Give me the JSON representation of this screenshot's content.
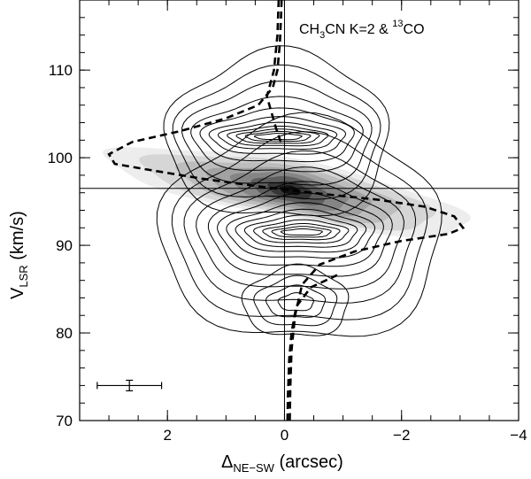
{
  "chart_data": {
    "type": "contour",
    "title": "",
    "annotation": {
      "base": "CH",
      "sub1": "3",
      "mid": "CN K=2 & ",
      "sup": "13",
      "end": "CO"
    },
    "xlabel": {
      "base": "Δ",
      "sub": "NE−SW",
      "rest": " (arcsec)"
    },
    "ylabel": {
      "base": "V",
      "sub": "LSR",
      "rest": " (km/s)"
    },
    "xlim": [
      3.5,
      -4
    ],
    "ylim": [
      70,
      118
    ],
    "x_ticks": [
      {
        "v": 2,
        "label": "2"
      },
      {
        "v": 0,
        "label": "0"
      },
      {
        "v": -2,
        "label": "−2"
      },
      {
        "v": -4,
        "label": "−4"
      }
    ],
    "y_ticks": [
      {
        "v": 70,
        "label": "70"
      },
      {
        "v": 80,
        "label": "80"
      },
      {
        "v": 90,
        "label": "90"
      },
      {
        "v": 100,
        "label": "100"
      },
      {
        "v": 110,
        "label": "110"
      }
    ],
    "x_minor_step": 0.5,
    "y_minor_step": 2,
    "reference_lines": {
      "velocity": 96.5,
      "offset": 0
    },
    "filled_contours_13CO": {
      "center": [
        -0.1,
        96.3
      ],
      "tilt_per_arcsec": 1.2,
      "levels": [
        {
          "rx": 3.1,
          "ry": 3.4,
          "fill": "#ededed"
        },
        {
          "rx": 2.5,
          "ry": 3.0,
          "fill": "#d6d6d6"
        },
        {
          "rx": 1.9,
          "ry": 2.6,
          "fill": "#bdbdbd"
        },
        {
          "rx": 1.4,
          "ry": 2.2,
          "fill": "#a2a2a2"
        },
        {
          "rx": 1.0,
          "ry": 1.8,
          "fill": "#858585"
        },
        {
          "rx": 0.65,
          "ry": 1.4,
          "fill": "#5e5e5e"
        },
        {
          "rx": 0.38,
          "ry": 0.9,
          "fill": "#363636"
        },
        {
          "rx": 0.18,
          "ry": 0.5,
          "fill": "#111111"
        }
      ]
    },
    "line_contours_CH3CN": {
      "upper_lobe": {
        "center": [
          0.1,
          102.4
        ],
        "levels": [
          {
            "rx": 1.9,
            "ry": 9.5
          },
          {
            "rx": 1.75,
            "ry": 7.5
          },
          {
            "rx": 1.6,
            "ry": 5.8
          },
          {
            "rx": 1.45,
            "ry": 4.2
          },
          {
            "rx": 1.3,
            "ry": 3.0
          },
          {
            "rx": 1.15,
            "ry": 2.1
          },
          {
            "rx": 1.0,
            "ry": 1.5
          },
          {
            "rx": 0.85,
            "ry": 1.1
          },
          {
            "rx": 0.7,
            "ry": 0.8
          },
          {
            "rx": 0.55,
            "ry": 0.55
          },
          {
            "rx": 0.4,
            "ry": 0.35
          }
        ]
      },
      "lower_lobe": {
        "center": [
          -0.3,
          91.5
        ],
        "levels": [
          {
            "rx": 2.4,
            "ry": 12.5
          },
          {
            "rx": 2.15,
            "ry": 10.5
          },
          {
            "rx": 1.95,
            "ry": 8.5
          },
          {
            "rx": 1.75,
            "ry": 6.8
          },
          {
            "rx": 1.55,
            "ry": 5.3
          },
          {
            "rx": 1.4,
            "ry": 4.1
          },
          {
            "rx": 1.25,
            "ry": 3.1
          },
          {
            "rx": 1.1,
            "ry": 2.4
          },
          {
            "rx": 0.95,
            "ry": 1.8
          },
          {
            "rx": 0.8,
            "ry": 1.3
          },
          {
            "rx": 0.65,
            "ry": 0.9
          },
          {
            "rx": 0.5,
            "ry": 0.6
          },
          {
            "rx": 0.35,
            "ry": 0.35
          }
        ]
      },
      "secondary_peak": {
        "center": [
          -0.2,
          83.5
        ],
        "levels": [
          {
            "rx": 0.9,
            "ry": 4.0
          },
          {
            "rx": 0.7,
            "ry": 2.8
          },
          {
            "rx": 0.5,
            "ry": 1.8
          },
          {
            "rx": 0.3,
            "ry": 1.0
          }
        ]
      }
    },
    "keplerian_curve": {
      "style": "dashed",
      "points": [
        [
          0.05,
          118
        ],
        [
          0.06,
          116
        ],
        [
          0.08,
          113
        ],
        [
          0.12,
          110
        ],
        [
          0.2,
          108
        ],
        [
          0.45,
          106
        ],
        [
          1.0,
          104.5
        ],
        [
          1.8,
          103
        ],
        [
          2.6,
          101.8
        ],
        [
          3.0,
          100.4
        ],
        [
          2.9,
          99.3
        ],
        [
          2.3,
          98.6
        ],
        [
          1.4,
          97.6
        ],
        [
          0.4,
          96.7
        ],
        [
          -0.6,
          95.9
        ],
        [
          -1.6,
          95.2
        ],
        [
          -2.4,
          94.4
        ],
        [
          -2.9,
          93.3
        ],
        [
          -3.05,
          92.0
        ],
        [
          -2.8,
          91.3
        ],
        [
          -2.0,
          90.5
        ],
        [
          -1.2,
          89.3
        ],
        [
          -0.6,
          87.8
        ],
        [
          -0.3,
          85.5
        ],
        [
          -0.18,
          82
        ],
        [
          -0.12,
          78
        ],
        [
          -0.1,
          74
        ],
        [
          -0.09,
          70
        ]
      ],
      "points_mirror": [
        [
          -0.05,
          70
        ],
        [
          -0.06,
          73
        ],
        [
          -0.08,
          77
        ],
        [
          -0.12,
          80
        ],
        [
          -0.2,
          83
        ],
        [
          -0.45,
          85.2
        ],
        [
          -0.9,
          86.6
        ]
      ],
      "points_inner": [
        [
          0.1,
          118
        ],
        [
          0.12,
          114
        ],
        [
          0.18,
          110
        ],
        [
          0.3,
          107
        ],
        [
          0.15,
          103.5
        ],
        [
          0.05,
          101.5
        ]
      ]
    },
    "error_bar": {
      "x": 2.65,
      "y": 74,
      "x_err": 0.55,
      "y_err": 0.6
    }
  }
}
